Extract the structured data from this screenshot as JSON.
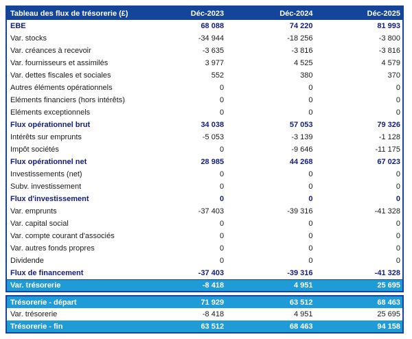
{
  "colors": {
    "header_bg": "#15459B",
    "navy_text": "#131C85",
    "highlight_bg": "#1F9BD7",
    "border": "#15459B"
  },
  "table": {
    "title": "Tableau des flux de trésorerie (£)",
    "columns": [
      "Déc-2023",
      "Déc-2024",
      "Déc-2025"
    ],
    "rows": [
      {
        "label": "EBE",
        "values": [
          "68 088",
          "74 220",
          "81 993"
        ],
        "style": "section"
      },
      {
        "label": "Var. stocks",
        "values": [
          "-34 944",
          "-18 256",
          "-3 800"
        ],
        "style": "normal"
      },
      {
        "label": "Var. créances à recevoir",
        "values": [
          "-3 635",
          "-3 816",
          "-3 816"
        ],
        "style": "normal"
      },
      {
        "label": "Var. fournisseurs et assimilés",
        "values": [
          "3 977",
          "4 525",
          "4 579"
        ],
        "style": "normal"
      },
      {
        "label": "Var. dettes fiscales et sociales",
        "values": [
          "552",
          "380",
          "370"
        ],
        "style": "normal"
      },
      {
        "label": "Autres éléments opérationnels",
        "values": [
          "0",
          "0",
          "0"
        ],
        "style": "normal"
      },
      {
        "label": "Eléments financiers (hors intérêts)",
        "values": [
          "0",
          "0",
          "0"
        ],
        "style": "normal"
      },
      {
        "label": "Eléments exceptionnels",
        "values": [
          "0",
          "0",
          "0"
        ],
        "style": "normal"
      },
      {
        "label": "Flux opérationnel brut",
        "values": [
          "34 038",
          "57 053",
          "79 326"
        ],
        "style": "section"
      },
      {
        "label": "Intérêts sur emprunts",
        "values": [
          "-5 053",
          "-3 139",
          "-1 128"
        ],
        "style": "normal"
      },
      {
        "label": "Impôt sociétés",
        "values": [
          "0",
          "-9 646",
          "-11 175"
        ],
        "style": "normal"
      },
      {
        "label": "Flux opérationnel net",
        "values": [
          "28 985",
          "44 268",
          "67 023"
        ],
        "style": "section"
      },
      {
        "label": "Investissements (net)",
        "values": [
          "0",
          "0",
          "0"
        ],
        "style": "normal"
      },
      {
        "label": "Subv. investissement",
        "values": [
          "0",
          "0",
          "0"
        ],
        "style": "normal"
      },
      {
        "label": "Flux d'investissement",
        "values": [
          "0",
          "0",
          "0"
        ],
        "style": "section"
      },
      {
        "label": "Var. emprunts",
        "values": [
          "-37 403",
          "-39 316",
          "-41 328"
        ],
        "style": "normal"
      },
      {
        "label": "Var. capital social",
        "values": [
          "0",
          "0",
          "0"
        ],
        "style": "normal"
      },
      {
        "label": "Var. compte courant d'associés",
        "values": [
          "0",
          "0",
          "0"
        ],
        "style": "normal"
      },
      {
        "label": "Var. autres fonds propres",
        "values": [
          "0",
          "0",
          "0"
        ],
        "style": "normal"
      },
      {
        "label": "Dividende",
        "values": [
          "0",
          "0",
          "0"
        ],
        "style": "normal"
      },
      {
        "label": "Flux de financement",
        "values": [
          "-37 403",
          "-39 316",
          "-41 328"
        ],
        "style": "section"
      },
      {
        "label": "Var. trésorerie",
        "values": [
          "-8 418",
          "4 951",
          "25 695"
        ],
        "style": "highlight"
      }
    ],
    "summary_rows": [
      {
        "label": "Trésorerie - départ",
        "values": [
          "71 929",
          "63 512",
          "68 463"
        ],
        "style": "highlight"
      },
      {
        "label": "Var. trésorerie",
        "values": [
          "-8 418",
          "4 951",
          "25 695"
        ],
        "style": "normal"
      },
      {
        "label": "Trésorerie - fin",
        "values": [
          "63 512",
          "68 463",
          "94 158"
        ],
        "style": "highlight"
      }
    ]
  }
}
